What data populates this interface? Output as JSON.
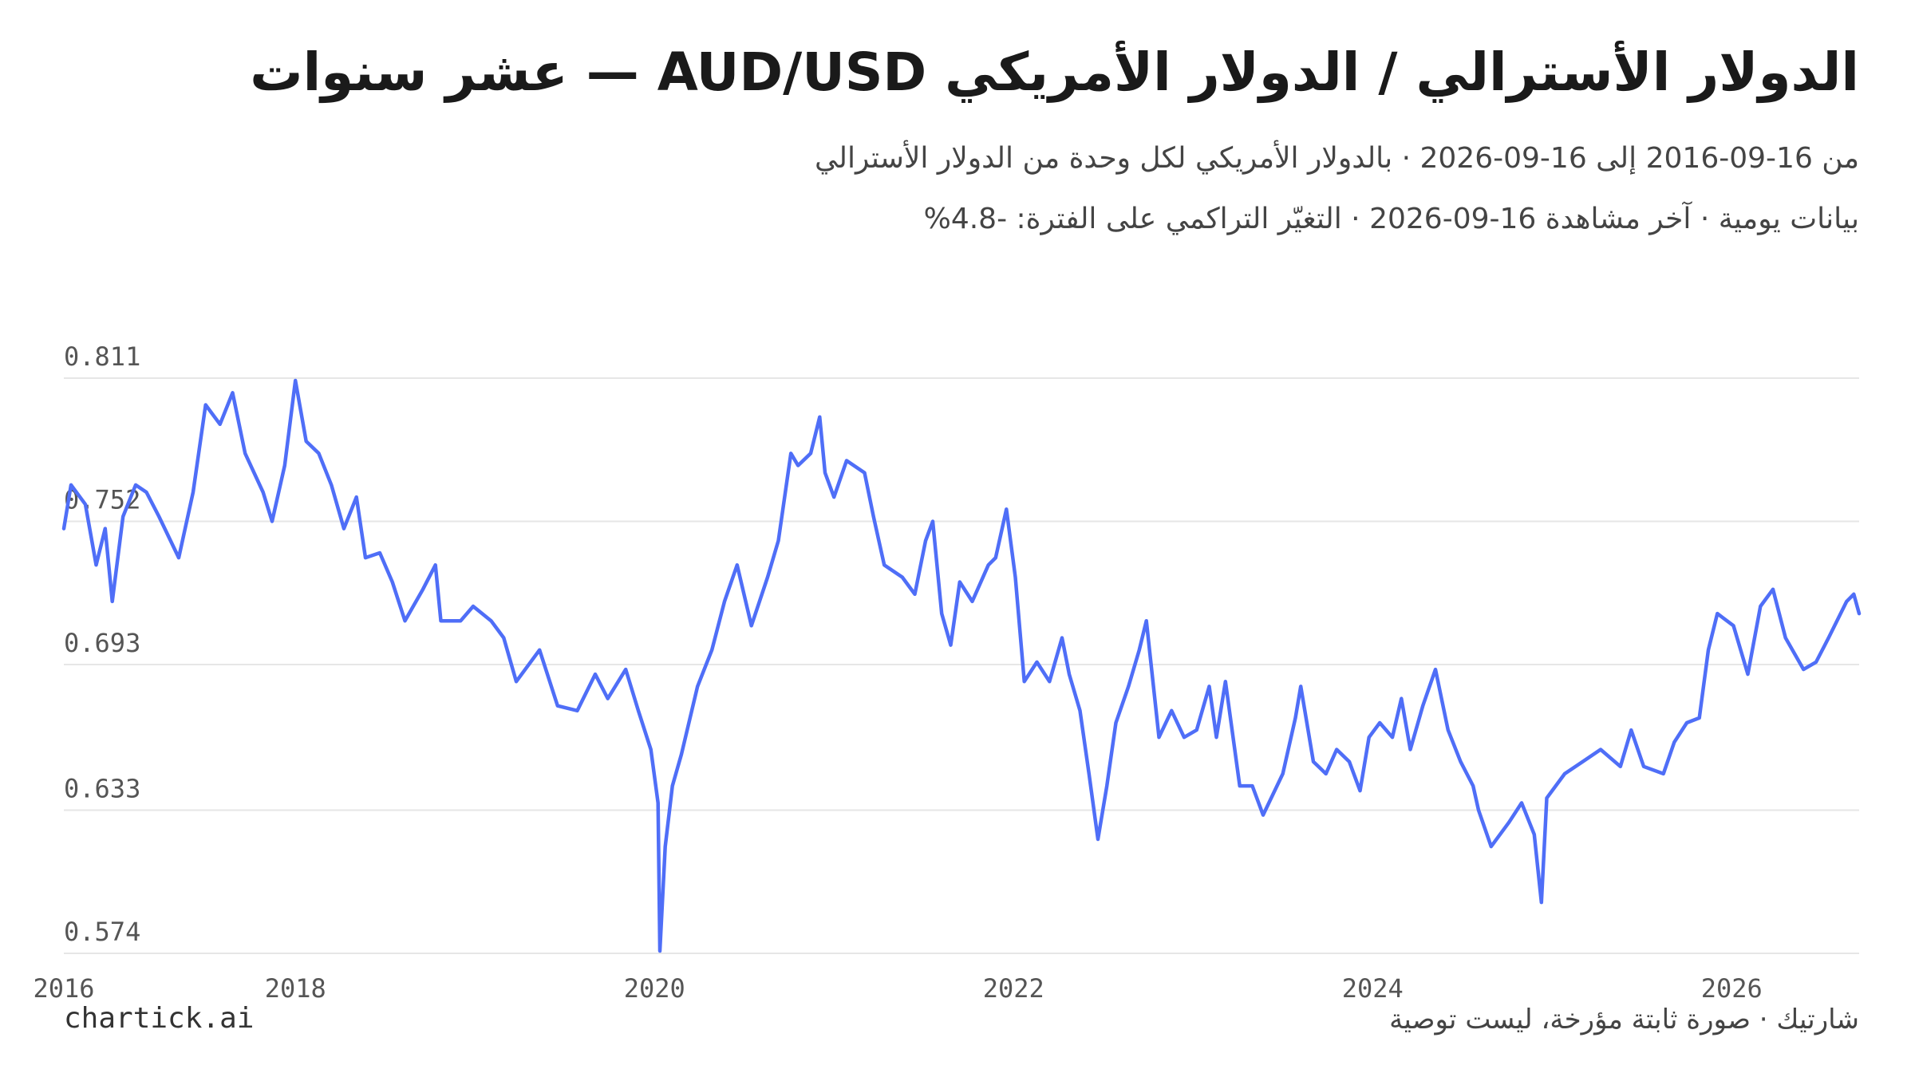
{
  "chart_data": {
    "type": "line",
    "title": "الدولار الأسترالي / الدولار الأمريكي AUD/USD — عشر سنوات",
    "subtitle": [
      "من 16-09-2016 إلى 16-09-2026 · بالدولار الأمريكي لكل وحدة من الدولار الأسترالي",
      "بيانات يومية · آخر مشاهدة 16-09-2026 · التغيّر التراكمي على الفترة: -4.8%"
    ],
    "brand": "chartick.ai",
    "footer": "شارتيك · صورة ثابتة مؤرخة، ليست توصية",
    "color": "#4f6ef7",
    "grid": true,
    "xlim": [
      2016.71,
      2026.71
    ],
    "xticks": [
      {
        "value": 2016.71,
        "label": "2016"
      },
      2018,
      2020,
      2022,
      2024,
      2026
    ],
    "ylim": [
      0.574,
      0.811
    ],
    "yticks": [
      0.574,
      0.633,
      0.693,
      0.752,
      0.811
    ],
    "x": [
      2016.71,
      2016.75,
      2016.83,
      2016.89,
      2016.94,
      2016.98,
      2017.04,
      2017.11,
      2017.17,
      2017.24,
      2017.35,
      2017.43,
      2017.5,
      2017.58,
      2017.65,
      2017.72,
      2017.82,
      2017.87,
      2017.94,
      2018.0,
      2018.06,
      2018.13,
      2018.2,
      2018.27,
      2018.34,
      2018.39,
      2018.47,
      2018.54,
      2018.61,
      2018.71,
      2018.78,
      2018.81,
      2018.92,
      2018.99,
      2019.09,
      2019.16,
      2019.23,
      2019.36,
      2019.46,
      2019.57,
      2019.67,
      2019.74,
      2019.84,
      2019.91,
      2019.98,
      2020.02,
      2020.03,
      2020.06,
      2020.1,
      2020.15,
      2020.24,
      2020.32,
      2020.39,
      2020.46,
      2020.54,
      2020.63,
      2020.69,
      2020.76,
      2020.8,
      2020.87,
      2020.92,
      2020.95,
      2021.0,
      2021.07,
      2021.17,
      2021.22,
      2021.28,
      2021.38,
      2021.45,
      2021.51,
      2021.55,
      2021.6,
      2021.65,
      2021.7,
      2021.77,
      2021.86,
      2021.9,
      2021.96,
      2022.01,
      2022.06,
      2022.13,
      2022.2,
      2022.27,
      2022.31,
      2022.37,
      2022.42,
      2022.47,
      2022.52,
      2022.57,
      2022.64,
      2022.7,
      2022.74,
      2022.81,
      2022.88,
      2022.95,
      2023.02,
      2023.09,
      2023.13,
      2023.18,
      2023.26,
      2023.33,
      2023.39,
      2023.5,
      2023.57,
      2023.6,
      2023.67,
      2023.74,
      2023.8,
      2023.87,
      2023.93,
      2023.98,
      2024.04,
      2024.11,
      2024.16,
      2024.21,
      2024.28,
      2024.35,
      2024.42,
      2024.49,
      2024.56,
      2024.59,
      2024.66,
      2024.76,
      2024.83,
      2024.9,
      2024.94,
      2024.97,
      2025.07,
      2025.17,
      2025.27,
      2025.38,
      2025.44,
      2025.51,
      2025.62,
      2025.68,
      2025.75,
      2025.82,
      2025.87,
      2025.92,
      2026.01,
      2026.09,
      2026.16,
      2026.23,
      2026.3,
      2026.4,
      2026.47,
      2026.54,
      2026.64,
      2026.68,
      2026.71
    ],
    "values": [
      0.749,
      0.767,
      0.759,
      0.734,
      0.749,
      0.719,
      0.754,
      0.767,
      0.764,
      0.754,
      0.737,
      0.764,
      0.8,
      0.792,
      0.805,
      0.78,
      0.764,
      0.752,
      0.775,
      0.81,
      0.785,
      0.78,
      0.767,
      0.749,
      0.762,
      0.737,
      0.739,
      0.727,
      0.711,
      0.724,
      0.734,
      0.711,
      0.711,
      0.717,
      0.711,
      0.704,
      0.686,
      0.699,
      0.676,
      0.674,
      0.689,
      0.679,
      0.691,
      0.674,
      0.658,
      0.636,
      0.575,
      0.618,
      0.643,
      0.656,
      0.684,
      0.699,
      0.719,
      0.734,
      0.709,
      0.729,
      0.744,
      0.78,
      0.775,
      0.78,
      0.795,
      0.772,
      0.762,
      0.777,
      0.772,
      0.754,
      0.734,
      0.729,
      0.722,
      0.744,
      0.752,
      0.714,
      0.701,
      0.727,
      0.719,
      0.734,
      0.737,
      0.757,
      0.729,
      0.686,
      0.694,
      0.686,
      0.704,
      0.689,
      0.674,
      0.648,
      0.621,
      0.643,
      0.669,
      0.684,
      0.699,
      0.711,
      0.663,
      0.674,
      0.663,
      0.666,
      0.684,
      0.663,
      0.686,
      0.643,
      0.643,
      0.631,
      0.648,
      0.671,
      0.684,
      0.653,
      0.648,
      0.658,
      0.653,
      0.641,
      0.663,
      0.669,
      0.663,
      0.679,
      0.658,
      0.676,
      0.691,
      0.666,
      0.653,
      0.643,
      0.633,
      0.618,
      0.628,
      0.636,
      0.623,
      0.595,
      0.638,
      0.648,
      0.653,
      0.658,
      0.651,
      0.666,
      0.651,
      0.648,
      0.661,
      0.669,
      0.671,
      0.699,
      0.714,
      0.709,
      0.689,
      0.717,
      0.724,
      0.704,
      0.691,
      0.694,
      0.704,
      0.719,
      0.722,
      0.714
    ]
  }
}
